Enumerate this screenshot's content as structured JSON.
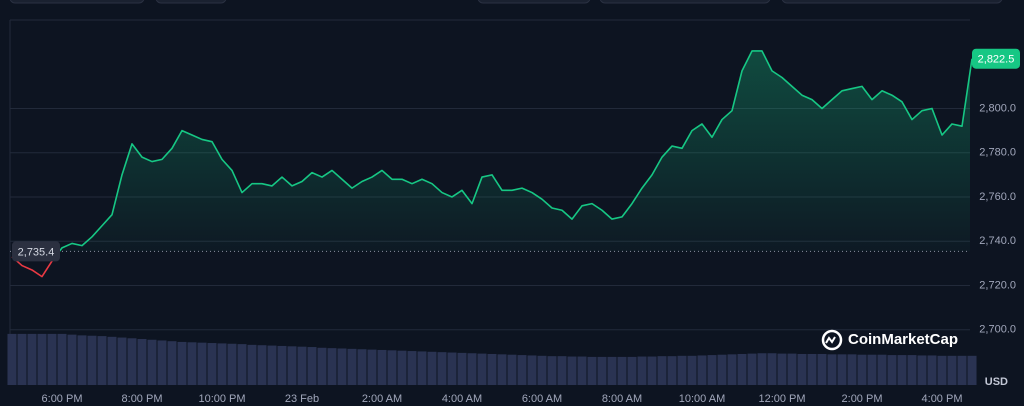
{
  "chart_data": {
    "type": "line",
    "categories": [
      null,
      null,
      null,
      null,
      null,
      "6:00 PM",
      null,
      null,
      null,
      null,
      null,
      null,
      null,
      "8:00 PM",
      null,
      null,
      null,
      null,
      null,
      null,
      null,
      "10:00 PM",
      null,
      null,
      null,
      null,
      null,
      null,
      null,
      "23 Feb",
      null,
      null,
      null,
      null,
      null,
      null,
      null,
      "2:00 AM",
      null,
      null,
      null,
      null,
      null,
      null,
      null,
      "4:00 AM",
      null,
      null,
      null,
      null,
      null,
      null,
      null,
      "6:00 AM",
      null,
      null,
      null,
      null,
      null,
      null,
      null,
      "8:00 AM",
      null,
      null,
      null,
      null,
      null,
      null,
      null,
      "10:00 AM",
      null,
      null,
      null,
      null,
      null,
      null,
      null,
      "12:00 PM",
      null,
      null,
      null,
      null,
      null,
      null,
      null,
      "2:00 PM",
      null,
      null,
      null,
      null,
      null,
      null,
      null,
      "4:00 PM",
      null,
      null,
      null
    ],
    "values": [
      2733,
      2729,
      2727,
      2724,
      2731,
      2737,
      2739,
      2738,
      2742,
      2747,
      2752,
      2770,
      2784,
      2778,
      2776,
      2777,
      2782,
      2790,
      2788,
      2786,
      2785,
      2777,
      2772,
      2762,
      2766,
      2766,
      2765,
      2769,
      2765,
      2767,
      2771,
      2769,
      2772,
      2768,
      2764,
      2767,
      2769,
      2772,
      2768,
      2768,
      2766,
      2768,
      2766,
      2762,
      2760,
      2763,
      2757,
      2769,
      2770,
      2763,
      2763,
      2764,
      2762,
      2759,
      2755,
      2754,
      2750,
      2756,
      2757,
      2754,
      2750,
      2751,
      2757,
      2764,
      2770,
      2778,
      2783,
      2782,
      2790,
      2793,
      2787,
      2795,
      2799,
      2817,
      2826,
      2826,
      2817,
      2814,
      2810,
      2806,
      2804,
      2800,
      2804,
      2808,
      2809,
      2810,
      2804,
      2808,
      2806,
      2803,
      2795,
      2799,
      2800,
      2788,
      2793,
      2792,
      2822.5
    ],
    "color": "#16c784",
    "below_color": "#ea3943",
    "volume": {
      "values": [
        14,
        14,
        14,
        14,
        14,
        14,
        13.8,
        13.6,
        13.5,
        13.4,
        13.2,
        13,
        12.8,
        12.6,
        12.4,
        12.2,
        12,
        11.8,
        11.7,
        11.6,
        11.5,
        11.4,
        11.3,
        11.2,
        11,
        10.9,
        10.8,
        10.7,
        10.6,
        10.5,
        10.4,
        10.2,
        10.1,
        10,
        9.9,
        9.8,
        9.7,
        9.6,
        9.5,
        9.4,
        9.3,
        9.2,
        9.1,
        9,
        8.9,
        8.8,
        8.7,
        8.6,
        8.5,
        8.4,
        8.3,
        8.2,
        8.1,
        8,
        7.9,
        7.9,
        7.8,
        7.8,
        7.7,
        7.7,
        7.7,
        7.7,
        7.7,
        7.8,
        7.8,
        7.9,
        7.9,
        8,
        8,
        8.1,
        8.2,
        8.3,
        8.4,
        8.5,
        8.6,
        8.7,
        8.7,
        8.6,
        8.6,
        8.5,
        8.5,
        8.5,
        8.4,
        8.4,
        8.4,
        8.3,
        8.3,
        8.3,
        8.2,
        8.2,
        8.2,
        8.1,
        8.1,
        8,
        8,
        8,
        8
      ],
      "color": "#2a3352"
    },
    "y2lim": [
      0,
      100
    ],
    "ylim": [
      2675,
      2840
    ],
    "yticks": [
      {
        "value": 2700,
        "label": "2,700.0"
      },
      {
        "value": 2720,
        "label": "2,720.0"
      },
      {
        "value": 2740,
        "label": "2,740.0"
      },
      {
        "value": 2760,
        "label": "2,760.0"
      },
      {
        "value": 2780,
        "label": "2,780.0"
      },
      {
        "value": 2800,
        "label": "2,800.0"
      }
    ],
    "grid": true,
    "reference": {
      "value": 2735.4,
      "label": "2,735.4"
    },
    "last_label": "2,822.5",
    "y_unit": "USD",
    "watermark": "CoinMarketCap"
  }
}
